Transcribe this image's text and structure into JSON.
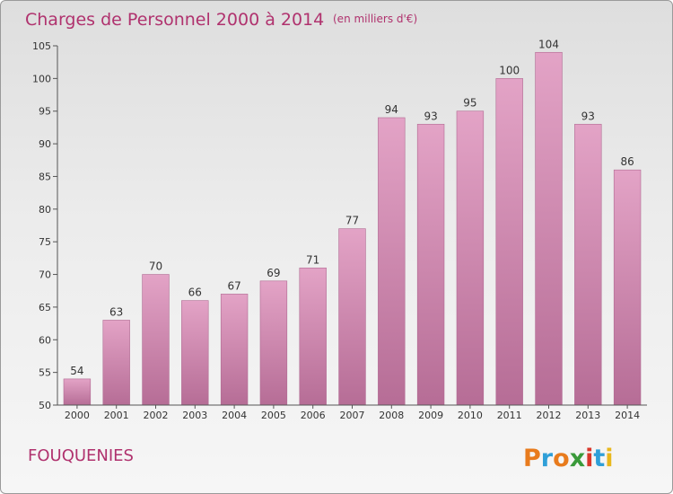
{
  "chart_data": {
    "type": "bar",
    "title": "Charges de Personnel 2000 à 2014",
    "subtitle": "(en milliers d'€)",
    "categories": [
      "2000",
      "2001",
      "2002",
      "2003",
      "2004",
      "2005",
      "2006",
      "2007",
      "2008",
      "2009",
      "2010",
      "2011",
      "2012",
      "2013",
      "2014"
    ],
    "values": [
      54,
      63,
      70,
      66,
      67,
      69,
      71,
      77,
      94,
      93,
      95,
      100,
      104,
      93,
      86
    ],
    "ylim": [
      50,
      105
    ],
    "yticks": [
      50,
      55,
      60,
      65,
      70,
      75,
      80,
      85,
      90,
      95,
      100,
      105
    ],
    "grid": false,
    "bar_color": "#e3a3c6",
    "bar_color_dark": "#b66d96"
  },
  "footer": {
    "town": "FOUQUENIES",
    "logo": "Proxiti",
    "logo_letters": [
      {
        "ch": "P",
        "color": "#e87b1d"
      },
      {
        "ch": "r",
        "color": "#2f9fd8"
      },
      {
        "ch": "o",
        "color": "#e87b1d"
      },
      {
        "ch": "x",
        "color": "#3a9a3a"
      },
      {
        "ch": "i",
        "color": "#d9372b"
      },
      {
        "ch": "t",
        "color": "#2f9fd8"
      },
      {
        "ch": "i",
        "color": "#e8b81d"
      }
    ]
  },
  "colors": {
    "accent": "#b0326e",
    "axis": "#555555"
  }
}
